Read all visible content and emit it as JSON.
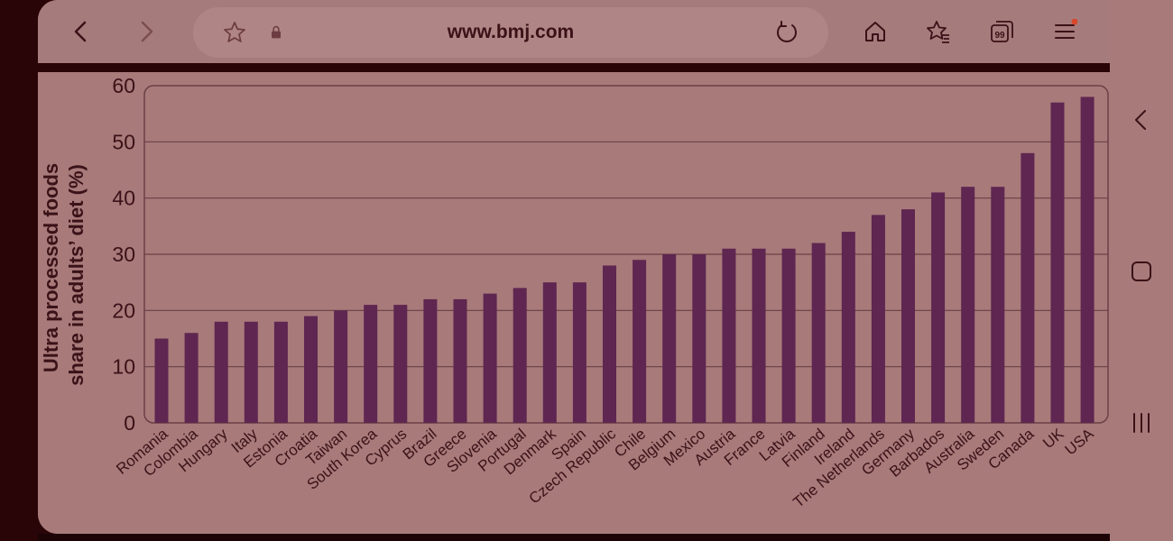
{
  "browser": {
    "url": "www.bmj.com",
    "toolbar_icons": [
      "back-icon",
      "forward-icon",
      "bookmark-star-icon",
      "lock-icon",
      "reload-icon",
      "home-icon",
      "bookmarks-list-icon",
      "tabs-icon",
      "menu-icon"
    ],
    "tab_count": "99",
    "menu_badge_color": "#d9472b"
  },
  "side_nav": {
    "icons": [
      "back-chevron-icon",
      "home-square-icon",
      "recent-apps-icon"
    ]
  },
  "chart_data": {
    "type": "bar",
    "ylabel": "Ultra processed foods share in adults’ diet (%)",
    "ylabel_lines": [
      "Ultra processed foods",
      "share in adults’ diet (%)"
    ],
    "xlabel": "",
    "ylim": [
      0,
      60
    ],
    "yticks": [
      0,
      10,
      20,
      30,
      40,
      50,
      60
    ],
    "grid": true,
    "bar_color": "#5e2650",
    "categories": [
      "Romania",
      "Colombia",
      "Hungary",
      "Italy",
      "Estonia",
      "Croatia",
      "Taiwan",
      "South Korea",
      "Cyprus",
      "Brazil",
      "Greece",
      "Slovenia",
      "Portugal",
      "Denmark",
      "Spain",
      "Czech Republic",
      "Chile",
      "Belgium",
      "Mexico",
      "Austria",
      "France",
      "Latvia",
      "Finland",
      "Ireland",
      "The Netherlands",
      "Germany",
      "Barbados",
      "Australia",
      "Sweden",
      "Canada",
      "UK",
      "USA"
    ],
    "values": [
      15,
      16,
      18,
      18,
      18,
      19,
      20,
      21,
      21,
      22,
      22,
      23,
      24,
      25,
      25,
      28,
      29,
      30,
      30,
      31,
      31,
      31,
      32,
      34,
      37,
      38,
      41,
      42,
      42,
      48,
      57,
      58
    ]
  }
}
